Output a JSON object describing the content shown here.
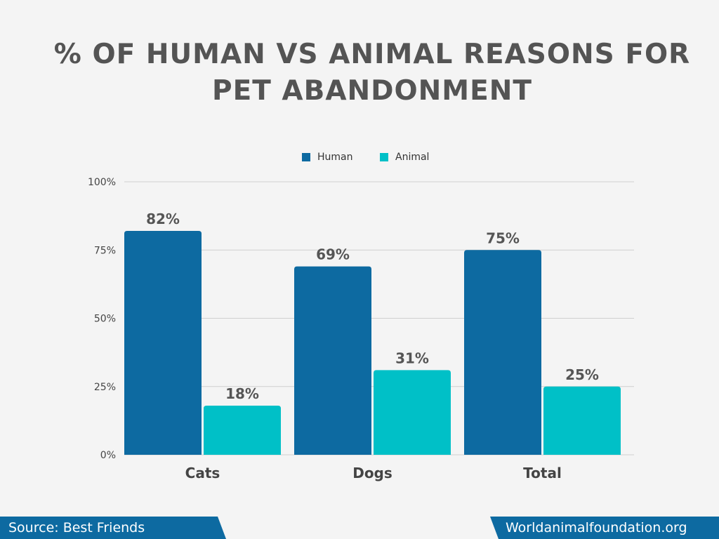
{
  "title_lines": [
    "% OF HUMAN VS ANIMAL REASONS FOR",
    "PET ABANDONMENT"
  ],
  "colors": {
    "human": "#0d6aa1",
    "animal": "#00c0c7",
    "footer": "#0d6aa1",
    "title": "#545454",
    "grid": "#cfcfcf"
  },
  "chart_data": {
    "type": "bar",
    "categories": [
      "Cats",
      "Dogs",
      "Total"
    ],
    "series": [
      {
        "name": "Human",
        "values": [
          82,
          69,
          75
        ],
        "labels": [
          "82%",
          "69%",
          "75%"
        ]
      },
      {
        "name": "Animal",
        "values": [
          18,
          31,
          25
        ],
        "labels": [
          "18%",
          "31%",
          "25%"
        ]
      }
    ],
    "y_ticks": [
      0,
      25,
      50,
      75,
      100
    ],
    "y_tick_labels": [
      "0%",
      "25%",
      "50%",
      "75%",
      "100%"
    ],
    "ylim": [
      0,
      100
    ],
    "grid": true,
    "legend_position": "top-center"
  },
  "footer": {
    "source": "Source: Best Friends",
    "site": "Worldanimalfoundation.org"
  }
}
